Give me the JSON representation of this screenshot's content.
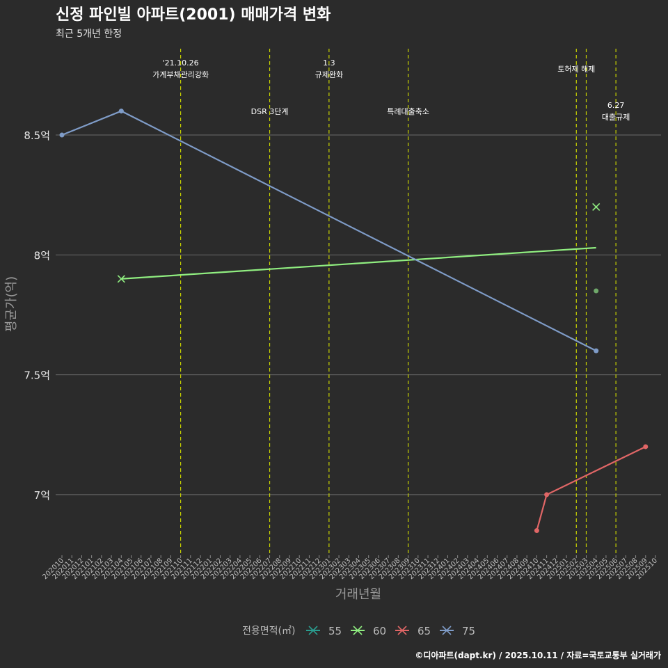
{
  "chart_data": {
    "type": "line",
    "title": "신정 파인빌 아파트(2001) 매매가격 변화",
    "subtitle": "최근 5개년 한정",
    "xlabel": "거래년월",
    "ylabel": "평균가(억)",
    "ylim": [
      6.75,
      8.86
    ],
    "yticks": [
      {
        "value": 7.0,
        "label": "7억"
      },
      {
        "value": 7.5,
        "label": "7.5억"
      },
      {
        "value": 8.0,
        "label": "8억"
      },
      {
        "value": 8.5,
        "label": "8.5억"
      }
    ],
    "categories": [
      "202010",
      "202011",
      "202012",
      "202101",
      "202102",
      "202103",
      "202104",
      "202105",
      "202106",
      "202107",
      "202108",
      "202109",
      "202110",
      "202111",
      "202112",
      "202201",
      "202202",
      "202203",
      "202204",
      "202205",
      "202206",
      "202207",
      "202208",
      "202209",
      "202210",
      "202211",
      "202212",
      "202301",
      "202302",
      "202303",
      "202304",
      "202305",
      "202306",
      "202307",
      "202308",
      "202309",
      "202310",
      "202311",
      "202312",
      "202401",
      "202402",
      "202403",
      "202404",
      "202405",
      "202406",
      "202407",
      "202408",
      "202409",
      "202410",
      "202411",
      "202412",
      "202501",
      "202502",
      "202503",
      "202504",
      "202505",
      "202506",
      "202507",
      "202508",
      "202509",
      "202510"
    ],
    "series": [
      {
        "name": "55",
        "color": "#2a9d8f",
        "points": []
      },
      {
        "name": "60",
        "color": "#90ee80",
        "points": [
          {
            "x": "202104",
            "y": 7.9,
            "marker": "x"
          },
          {
            "x": "202504",
            "y": 8.2,
            "marker": "x"
          },
          {
            "x": "202504",
            "y": 7.85,
            "marker": "o"
          }
        ],
        "trend": [
          {
            "x": "202104",
            "y": 7.9
          },
          {
            "x": "202504",
            "y": 8.03
          }
        ]
      },
      {
        "name": "65",
        "color": "#e06666",
        "points": [
          {
            "x": "202410",
            "y": 6.85,
            "marker": "o"
          },
          {
            "x": "202411",
            "y": 7.0,
            "marker": "o"
          },
          {
            "x": "202509",
            "y": 7.2,
            "marker": "o"
          }
        ],
        "trend": []
      },
      {
        "name": "75",
        "color": "#7f9cc8",
        "points": [
          {
            "x": "202010",
            "y": 8.5,
            "marker": "o"
          },
          {
            "x": "202104",
            "y": 8.6,
            "marker": "o"
          },
          {
            "x": "202504",
            "y": 7.6,
            "marker": "o"
          }
        ],
        "trend": []
      }
    ],
    "annotations": [
      {
        "x": "202110",
        "lines": [
          "'21.10.26",
          "가계부채관리강화"
        ],
        "row": 1
      },
      {
        "x": "202207",
        "lines": [
          "DSR 3단계"
        ],
        "row": 2
      },
      {
        "x": "202301",
        "lines": [
          "1.3",
          "규제완화"
        ],
        "row": 1
      },
      {
        "x": "202309",
        "lines": [
          "특례대출축소"
        ],
        "row": 2
      },
      {
        "x": "202502",
        "lines": [
          "토허제 해제"
        ],
        "row": 1.5
      },
      {
        "x": "202503",
        "lines": [],
        "row": 0
      },
      {
        "x": "202506",
        "lines": [
          "6.27",
          "대출규제"
        ],
        "row": 3
      }
    ],
    "legend_title": "전용면적(㎡)",
    "legend_position": "bottom",
    "grid": true
  },
  "caption": "©디아파트(dapt.kr) / 2025.10.11 / 자료=국토교통부 실거래가",
  "colors": {
    "background": "#2b2b2b",
    "grid": "#6b6b6b",
    "vline": "#c9d400",
    "text": "#e6e6e6",
    "axis_text": "#bdbdbd"
  }
}
